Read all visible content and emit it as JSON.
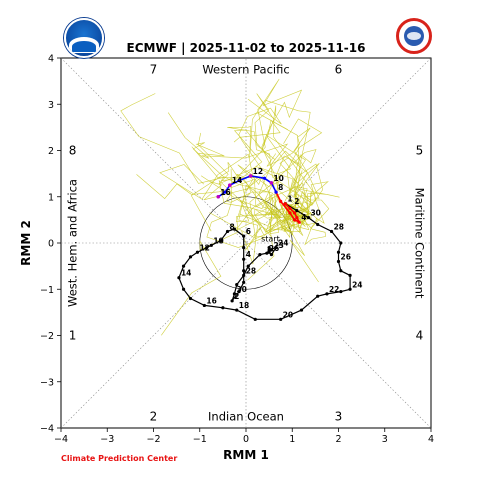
{
  "title": "ECMWF | 2025-11-02 to 2025-11-16",
  "logos": {
    "left": {
      "name": "noaa-logo",
      "text": "NOAA"
    },
    "right": {
      "name": "nws-logo",
      "text": "NATIONAL WEATHER SERVICE"
    }
  },
  "footer": "Climate Prediction Center",
  "chart_data": {
    "type": "line",
    "title": "ECMWF | 2025-11-02 to 2025-11-16",
    "xlabel": "RMM 1",
    "ylabel": "RMM 2",
    "xlim": [
      -4,
      4
    ],
    "ylim": [
      -4,
      4
    ],
    "xticks": [
      -4,
      -3,
      -2,
      -1,
      0,
      1,
      2,
      3,
      4
    ],
    "yticks": [
      -4,
      -3,
      -2,
      -1,
      0,
      1,
      2,
      3,
      4
    ],
    "unit_circle_radius": 1,
    "grid": "dotted diagonals and axes",
    "region_labels": [
      {
        "text": "Western Pacific",
        "x": 0,
        "y": 3.75
      },
      {
        "text": "Indian Ocean",
        "x": 0,
        "y": -3.75
      },
      {
        "text": "West. Hem. and Africa",
        "x": -3.75,
        "y": 0,
        "rotate": -90
      },
      {
        "text": "Maritime Continent",
        "x": 3.75,
        "y": 0,
        "rotate": 90
      }
    ],
    "phase_labels": [
      {
        "text": "7",
        "x": -2,
        "y": 3.75
      },
      {
        "text": "6",
        "x": 2,
        "y": 3.75
      },
      {
        "text": "8",
        "x": -3.75,
        "y": 2
      },
      {
        "text": "5",
        "x": 3.75,
        "y": 2
      },
      {
        "text": "1",
        "x": -3.75,
        "y": -2
      },
      {
        "text": "4",
        "x": 3.75,
        "y": -2
      },
      {
        "text": "2",
        "x": -2,
        "y": -3.75
      },
      {
        "text": "3",
        "x": 2,
        "y": -3.75
      }
    ],
    "colors": {
      "observed": "#000000",
      "forecast_first_week": "#ff0000",
      "forecast_second_week": "#0000ff",
      "ensemble_members": "#c8c81e",
      "ensemble_mean_points": "#c000c0"
    },
    "observed": {
      "start_label": "start",
      "points": [
        {
          "x": 0.5,
          "y": -0.1
        },
        {
          "x": 0.55,
          "y": -0.15,
          "label": "23"
        },
        {
          "x": 0.5,
          "y": -0.2
        },
        {
          "x": 0.55,
          "y": -0.25
        },
        {
          "x": 0.65,
          "y": -0.1,
          "label": "24"
        },
        {
          "x": 0.5,
          "y": -0.15
        },
        {
          "x": 0.45,
          "y": -0.22,
          "label": "26"
        },
        {
          "x": 0.3,
          "y": -0.25
        },
        {
          "x": 0.05,
          "y": -0.5
        },
        {
          "x": -0.05,
          "y": -0.7,
          "label": "28"
        },
        {
          "x": -0.2,
          "y": -0.9
        },
        {
          "x": -0.25,
          "y": -1.1,
          "label": "30"
        },
        {
          "x": -0.3,
          "y": -1.25,
          "label": "2"
        },
        {
          "x": -0.15,
          "y": -1.05
        },
        {
          "x": -0.05,
          "y": -0.85
        },
        {
          "x": -0.05,
          "y": -0.6
        },
        {
          "x": -0.05,
          "y": -0.35,
          "label": "4"
        },
        {
          "x": -0.05,
          "y": -0.1
        },
        {
          "x": -0.05,
          "y": 0.15,
          "label": "6"
        },
        {
          "x": -0.25,
          "y": 0.3
        },
        {
          "x": -0.4,
          "y": 0.25,
          "label": "8"
        },
        {
          "x": -0.55,
          "y": 0.05
        },
        {
          "x": -0.75,
          "y": -0.05,
          "label": "10"
        },
        {
          "x": -0.85,
          "y": -0.1
        },
        {
          "x": -1.05,
          "y": -0.2,
          "label": "12"
        },
        {
          "x": -1.2,
          "y": -0.3
        },
        {
          "x": -1.35,
          "y": -0.5
        },
        {
          "x": -1.45,
          "y": -0.75,
          "label": "14"
        },
        {
          "x": -1.35,
          "y": -1.0
        },
        {
          "x": -1.2,
          "y": -1.2
        },
        {
          "x": -0.9,
          "y": -1.35,
          "label": "16"
        },
        {
          "x": -0.5,
          "y": -1.4
        },
        {
          "x": -0.2,
          "y": -1.45,
          "label": "18"
        },
        {
          "x": 0.2,
          "y": -1.65
        },
        {
          "x": 0.75,
          "y": -1.65,
          "label": "20"
        },
        {
          "x": 1.2,
          "y": -1.45
        },
        {
          "x": 1.55,
          "y": -1.15
        },
        {
          "x": 1.75,
          "y": -1.1,
          "label": "22"
        },
        {
          "x": 2.05,
          "y": -1.05
        },
        {
          "x": 2.25,
          "y": -1.0,
          "label": "24"
        },
        {
          "x": 2.25,
          "y": -0.7
        },
        {
          "x": 2.05,
          "y": -0.6
        },
        {
          "x": 2.0,
          "y": -0.4,
          "label": "26"
        },
        {
          "x": 2.0,
          "y": -0.2
        },
        {
          "x": 2.05,
          "y": 0.0
        },
        {
          "x": 1.85,
          "y": 0.25,
          "label": "28"
        },
        {
          "x": 1.55,
          "y": 0.4
        },
        {
          "x": 1.35,
          "y": 0.55,
          "label": "30"
        },
        {
          "x": 1.1,
          "y": 0.7
        },
        {
          "x": 0.85,
          "y": 0.85,
          "label": "1"
        }
      ]
    },
    "forecast_first_week": {
      "points": [
        {
          "x": 0.85,
          "y": 0.85
        },
        {
          "x": 0.95,
          "y": 0.75
        },
        {
          "x": 1.05,
          "y": 0.65
        },
        {
          "x": 1.1,
          "y": 0.55
        },
        {
          "x": 1.15,
          "y": 0.45,
          "label": "4"
        },
        {
          "x": 1.05,
          "y": 0.5
        },
        {
          "x": 0.95,
          "y": 0.65
        },
        {
          "x": 0.75,
          "y": 0.9
        },
        {
          "x": 0.65,
          "y": 1.1,
          "label": "8"
        }
      ],
      "labels_only": [
        {
          "x": 1.0,
          "y": 0.8,
          "label": "2"
        }
      ]
    },
    "forecast_second_week": {
      "points": [
        {
          "x": 0.65,
          "y": 1.1
        },
        {
          "x": 0.55,
          "y": 1.3,
          "label": "10"
        },
        {
          "x": 0.4,
          "y": 1.4
        },
        {
          "x": 0.1,
          "y": 1.45,
          "label": "12"
        },
        {
          "x": -0.15,
          "y": 1.35
        },
        {
          "x": -0.35,
          "y": 1.25,
          "label": "14"
        },
        {
          "x": -0.45,
          "y": 1.1
        },
        {
          "x": -0.6,
          "y": 1.0,
          "label": "16"
        }
      ]
    },
    "ensemble_mean_points": [
      {
        "x": -0.6,
        "y": 1.0
      },
      {
        "x": -0.35,
        "y": 1.25
      },
      {
        "x": 0.1,
        "y": 1.45
      },
      {
        "x": 0.55,
        "y": 1.3
      }
    ]
  }
}
